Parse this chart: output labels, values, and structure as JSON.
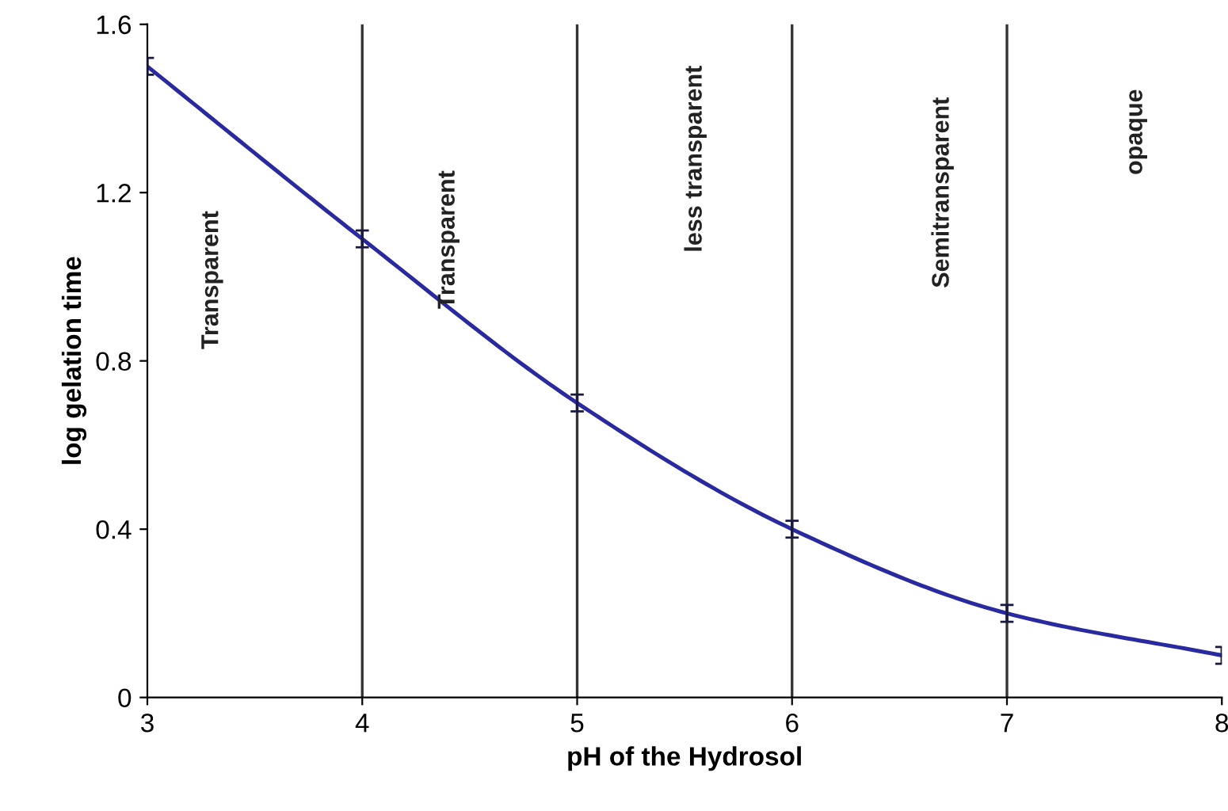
{
  "chart_data": {
    "type": "line",
    "xlabel": "pH of the Hydrosol",
    "ylabel": "log gelation time",
    "x": [
      3,
      4,
      5,
      6,
      7,
      8
    ],
    "series": [
      {
        "color": "#2a2aa0",
        "values": [
          1.5,
          1.09,
          0.7,
          0.4,
          0.2,
          0.1
        ],
        "errors": [
          0.02,
          0.02,
          0.02,
          0.02,
          0.02,
          0.02
        ]
      }
    ],
    "xlim": [
      3,
      8
    ],
    "xticks": [
      3,
      4,
      5,
      6,
      7,
      8
    ],
    "ylim": [
      0,
      1.6
    ],
    "yticks": [
      0,
      0.4,
      0.8,
      1.2,
      1.6
    ],
    "grid": false,
    "legend": false,
    "marker": "none",
    "line_style": "solid",
    "ref_lines": [
      {
        "axis": "x",
        "value": 4
      },
      {
        "axis": "x",
        "value": 5
      },
      {
        "axis": "x",
        "value": 6
      },
      {
        "axis": "x",
        "value": 7
      }
    ],
    "annotations": [
      "Transparent",
      "Transparent",
      "less transparent",
      "Semitransparent",
      "opaque"
    ]
  }
}
